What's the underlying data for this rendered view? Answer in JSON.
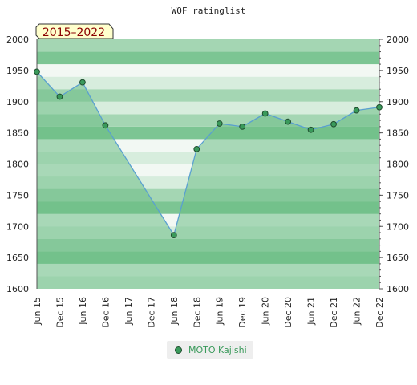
{
  "chart_data": {
    "type": "line",
    "title": "WOF ratinglist",
    "badge": "2015–2022",
    "x": [
      "Jun 15",
      "Dec 15",
      "Jun 16",
      "Dec 16",
      "Jun 17",
      "Dec 17",
      "Jun 18",
      "Dec 18",
      "Jun 19",
      "Dec 19",
      "Jun 20",
      "Dec 20",
      "Jun 21",
      "Dec 21",
      "Jun 22",
      "Dec 22"
    ],
    "ylim": [
      1600,
      2000
    ],
    "yticks": [
      1600,
      1650,
      1700,
      1750,
      1800,
      1850,
      1900,
      1950,
      2000
    ],
    "series": [
      {
        "name": "MOTO Kajishi",
        "points": [
          {
            "x": "Jun 15",
            "y": 1948
          },
          {
            "x": "Dec 15",
            "y": 1908
          },
          {
            "x": "Jun 16",
            "y": 1931
          },
          {
            "x": "Dec 16",
            "y": 1862
          },
          {
            "x": "Jun 18",
            "y": 1686
          },
          {
            "x": "Dec 18",
            "y": 1824
          },
          {
            "x": "Jun 19",
            "y": 1865
          },
          {
            "x": "Dec 19",
            "y": 1860
          },
          {
            "x": "Jun 20",
            "y": 1881
          },
          {
            "x": "Dec 20",
            "y": 1868
          },
          {
            "x": "Jun 21",
            "y": 1855
          },
          {
            "x": "Dec 21",
            "y": 1864
          },
          {
            "x": "Jun 22",
            "y": 1886
          },
          {
            "x": "Dec 22",
            "y": 1891
          }
        ]
      }
    ],
    "colors": {
      "band_dark": "#7cc593",
      "band_mid": "#a4d6b3",
      "band_light": "#d7eddd",
      "band_lightest": "#f2f8f3",
      "area_fill": "#6cbd85",
      "line": "#5aa0d0",
      "marker_fill": "#3a9a5b",
      "marker_stroke": "#1f4d2e",
      "legend_text": "#3a9a5b",
      "badge_fill": "#ffffcc"
    },
    "legend": "bottom-center",
    "grid": true
  }
}
